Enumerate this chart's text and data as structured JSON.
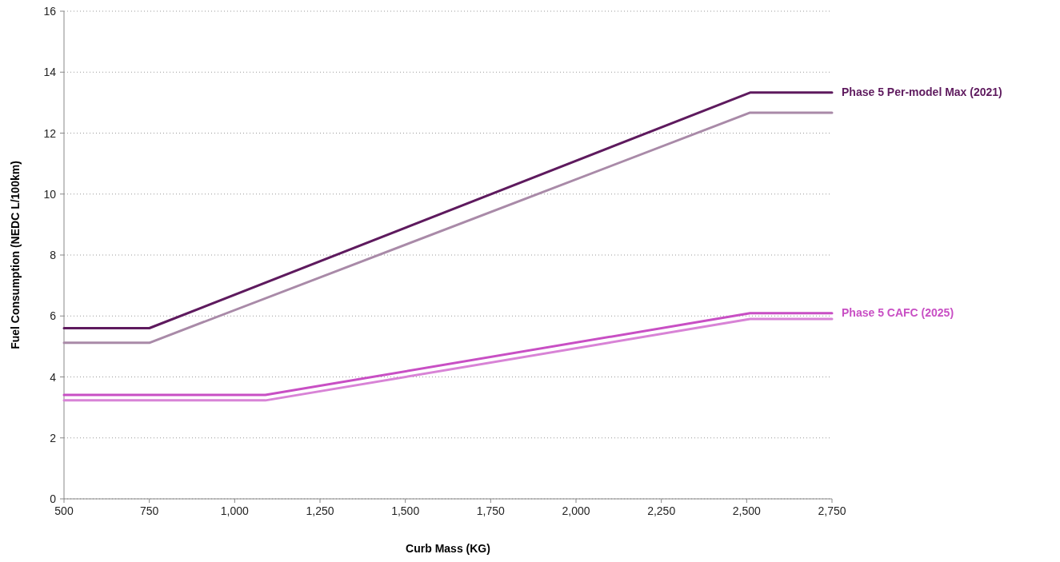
{
  "chart_data": {
    "type": "line",
    "xlabel": "Curb Mass (KG)",
    "ylabel": "Fuel Consumption (NEDC L/100km)",
    "xlim": [
      500,
      2750
    ],
    "ylim": [
      0,
      16
    ],
    "xticks": [
      500,
      750,
      {
        "value": 1000,
        "label": "1,000"
      },
      {
        "value": 1250,
        "label": "1,250"
      },
      {
        "value": 1500,
        "label": "1,500"
      },
      {
        "value": 1750,
        "label": "1,750"
      },
      {
        "value": 2000,
        "label": "2,000"
      },
      {
        "value": 2250,
        "label": "2,250"
      },
      {
        "value": 2500,
        "label": "2,500"
      },
      {
        "value": 2750,
        "label": "2,750"
      }
    ],
    "yticks": [
      0,
      2,
      4,
      6,
      8,
      10,
      12,
      14,
      16
    ],
    "grid": "y",
    "legend": false,
    "marker": "none",
    "line_style": "solid",
    "series": [
      {
        "name": "Phase 5 Per-model Max (2021)",
        "color": "#5e1a5e",
        "x": [
          500,
          750,
          2510,
          2750
        ],
        "values": [
          5.6,
          5.6,
          13.33,
          13.33
        ]
      },
      {
        "color": "#a98aa8",
        "x": [
          500,
          750,
          2510,
          2750
        ],
        "values": [
          5.12,
          5.12,
          12.67,
          12.67
        ]
      },
      {
        "name": "Phase 5 CAFC (2025)",
        "color": "#c84fc4",
        "x": [
          500,
          1090,
          2510,
          2750
        ],
        "values": [
          3.41,
          3.41,
          6.09,
          6.09
        ]
      },
      {
        "color": "#d883d6",
        "x": [
          500,
          1090,
          2510,
          2750
        ],
        "values": [
          3.23,
          3.23,
          5.9,
          5.9
        ]
      }
    ]
  }
}
